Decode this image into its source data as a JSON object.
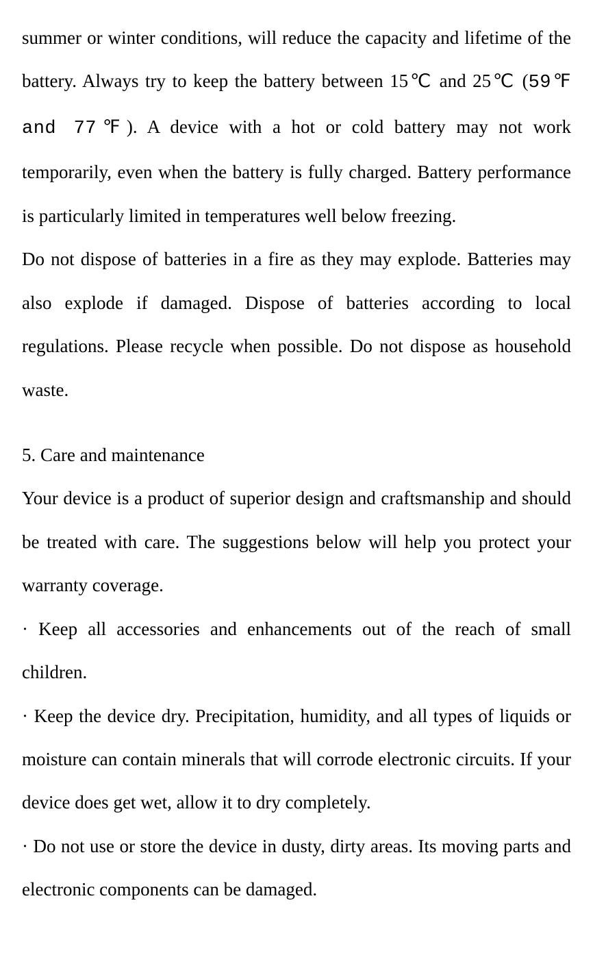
{
  "document": {
    "font_family": "Times New Roman",
    "background_color": "#ffffff",
    "text_color": "#000000",
    "font_size_pt": 20,
    "line_height": 2.35,
    "text_align": "justify"
  },
  "paragraphs": {
    "p1_part1": "summer or winter conditions, will reduce the capacity and lifetime of the battery. Always try to keep the battery between 15℃ and 25℃ (",
    "p1_mono": "59℉ and 77℉",
    "p1_part2": "). A device with a hot or cold battery may not work temporarily, even when the battery is fully charged. Battery performance is particularly limited in temperatures well below freezing.",
    "p2": "Do not dispose of batteries in a fire as they may explode. Batteries may also explode if damaged. Dispose of batteries according to local regulations. Please recycle when possible. Do not dispose as household waste.",
    "section_heading": "5. Care and maintenance",
    "p3": "Your device is a product of superior design and craftsmanship and should be treated with care. The suggestions below will help you protect your warranty coverage.",
    "bullet1": "· Keep all accessories and enhancements out of the reach of small children.",
    "bullet2": "· Keep the device dry. Precipitation, humidity, and all types of liquids or moisture can contain minerals that will corrode electronic circuits. If your device does get wet, allow it to dry completely.",
    "bullet3": "· Do not use or store the device in dusty, dirty areas. Its moving parts and electronic components can be damaged."
  }
}
